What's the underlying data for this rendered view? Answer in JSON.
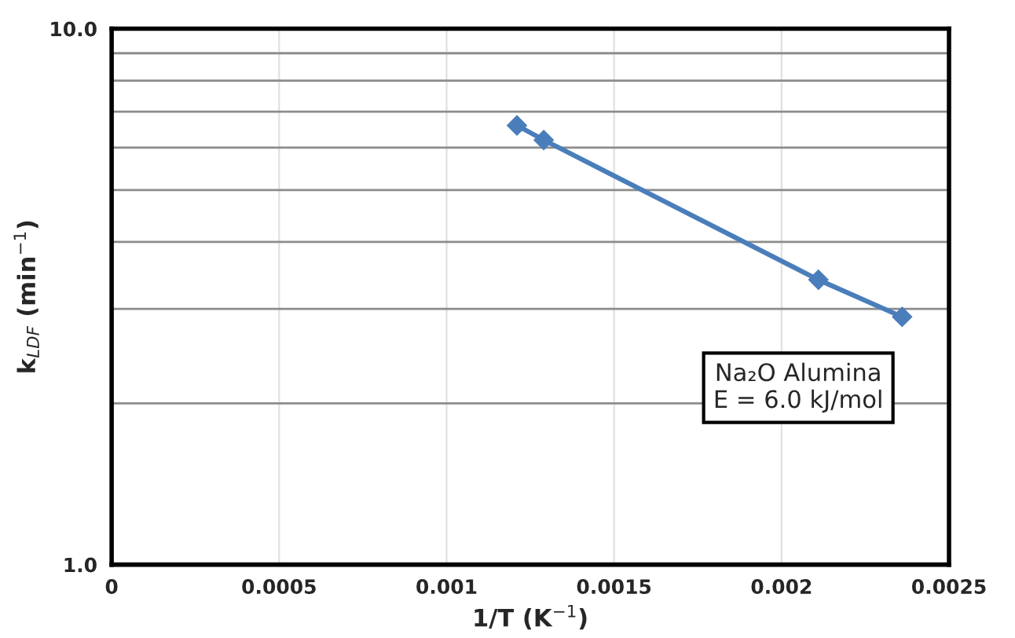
{
  "chart_data": {
    "type": "line",
    "xlabel": "1/T (K$^{−1}$)",
    "ylabel": "k$_{LDF}$ (min$^{−1}$)",
    "x": [
      0.00121,
      0.00129,
      0.00211,
      0.00236
    ],
    "series": [
      {
        "color": "#4a7ebb",
        "values": [
          6.6,
          6.2,
          3.4,
          2.9
        ]
      }
    ],
    "xlim": [
      0,
      0.0025
    ],
    "xticks": [
      0,
      0.0005,
      0.001,
      0.0015,
      0.002,
      0.0025
    ],
    "ylim": [
      1,
      10
    ],
    "log": true,
    "yticks": [
      {
        "value": 1,
        "label": "1.0"
      },
      {
        "value": 2,
        "label": null
      },
      {
        "value": 3,
        "label": null
      },
      {
        "value": 4,
        "label": null
      },
      {
        "value": 5,
        "label": null
      },
      {
        "value": 6,
        "label": null
      },
      {
        "value": 7,
        "label": null
      },
      {
        "value": 8,
        "label": null
      },
      {
        "value": 9,
        "label": null
      },
      {
        "value": 10,
        "label": "10.0"
      }
    ],
    "grid": true,
    "marker": "diamond",
    "line_style": "solid",
    "legend": false,
    "annotations": [
      "Na₂O Alumina\nE = 6.0 kJ/mol"
    ]
  }
}
